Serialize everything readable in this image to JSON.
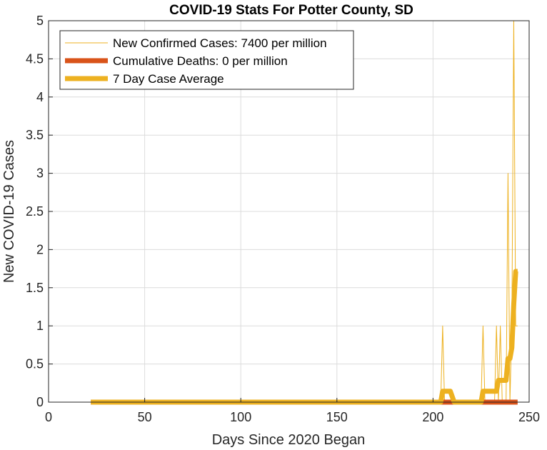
{
  "chart_data": {
    "type": "line",
    "title": "COVID-19 Stats For Potter County, SD",
    "xlabel": "Days Since 2020 Began",
    "ylabel": "New COVID-19 Cases",
    "xlim": [
      0,
      250
    ],
    "ylim": [
      0,
      5
    ],
    "xticks": [
      0,
      50,
      100,
      150,
      200,
      250
    ],
    "yticks": [
      0,
      0.5,
      1,
      1.5,
      2,
      2.5,
      3,
      3.5,
      4,
      4.5,
      5
    ],
    "grid": true,
    "legend_position": "top-left",
    "series": [
      {
        "name": "New Confirmed Cases: 7400 per million",
        "color": "#EDB120",
        "style": "thin",
        "x": [
          22,
          204,
          205,
          206,
          225,
          226,
          227,
          232,
          233,
          234,
          235,
          236,
          238,
          239,
          240,
          241,
          242,
          243,
          244
        ],
        "y": [
          0,
          0,
          1,
          0,
          0,
          1,
          0,
          0,
          1,
          0,
          1,
          0,
          0,
          3,
          0,
          1,
          5,
          1,
          1
        ]
      },
      {
        "name": "Cumulative Deaths: 0 per million",
        "color": "#D95319",
        "style": "thick",
        "x": [
          22,
          244
        ],
        "y": [
          0,
          0
        ]
      },
      {
        "name": "7 Day Case Average",
        "color": "#EDB120",
        "style": "thick",
        "x": [
          22,
          204,
          205,
          209,
          211,
          225,
          226,
          233,
          234,
          236,
          238,
          239,
          240,
          241,
          242,
          243,
          244
        ],
        "y": [
          0,
          0,
          0.143,
          0.143,
          0,
          0,
          0.143,
          0.143,
          0.286,
          0.286,
          0.286,
          0.571,
          0.571,
          0.714,
          1.286,
          1.714,
          1.714
        ]
      }
    ]
  }
}
